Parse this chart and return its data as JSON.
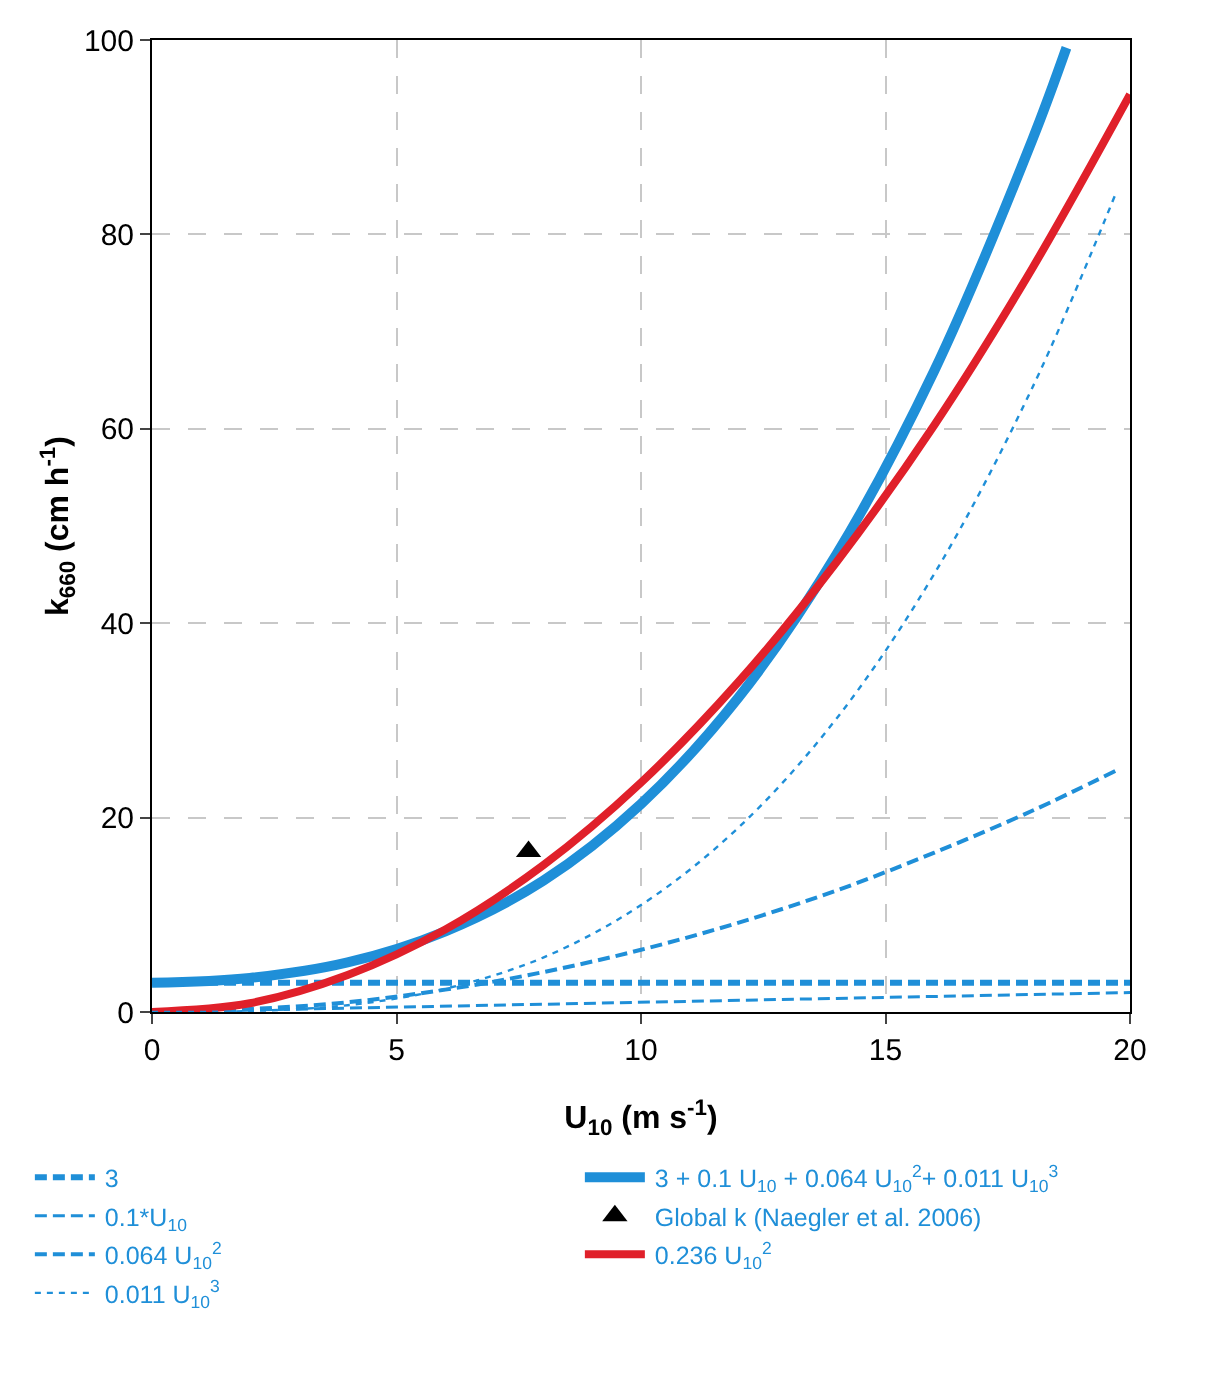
{
  "chart_data": {
    "type": "line",
    "xlabel": "U$_{10}$ (m s$^{-1}$)",
    "ylabel": "k$_{660}$ (cm h$^{-1}$)",
    "xlim": [
      0,
      20
    ],
    "xticks": [
      0,
      5,
      10,
      15,
      20
    ],
    "ylim": [
      0,
      100
    ],
    "yticks": [
      0,
      20,
      40,
      60,
      80,
      100
    ],
    "grid": true,
    "legend": "bottom",
    "series": [
      {
        "name": "3",
        "color": "#1f8fd8",
        "line_style": "dashed",
        "x": [
          0,
          20
        ],
        "values": [
          3,
          3
        ]
      },
      {
        "name": "3 + 0.1 U$_{10}$ + 0.064 U$_{10}$$^{2}$+ 0.011 U$_{10}$$^{3}$",
        "color": "#1f8fd8",
        "line_style": "solid",
        "x": [
          0,
          2,
          4,
          6,
          8,
          10,
          12,
          14,
          16,
          18,
          18.7
        ],
        "values": [
          3,
          3.5,
          5.1,
          8.3,
          13.5,
          21.4,
          32.4,
          47.1,
          66,
          89.7,
          99.2
        ]
      },
      {
        "name": "0.1*U$_{10}$",
        "color": "#1f8fd8",
        "line_style": "dashed",
        "x": [
          0,
          20
        ],
        "values": [
          0,
          2
        ]
      },
      {
        "name": "Global k (Naegler et al. 2006)",
        "type": "scatter",
        "marker": "triangle",
        "color": "#000000",
        "x": [
          7.7
        ],
        "values": [
          16.5
        ]
      },
      {
        "name": "0.064 U$_{10}$$^{2}$",
        "color": "#1f8fd8",
        "line_style": "dashed",
        "x": [
          0,
          2,
          4,
          6,
          8,
          10,
          12,
          14,
          16,
          18,
          19.7
        ],
        "values": [
          0,
          0.3,
          1,
          2.3,
          4.1,
          6.4,
          9.2,
          12.5,
          16.4,
          20.7,
          24.8
        ]
      },
      {
        "name": "0.236 U$_{10}$$^{2}$",
        "color": "#e0202a",
        "line_style": "solid",
        "x": [
          0,
          2,
          4,
          6,
          8,
          10,
          12,
          14,
          16,
          18,
          20
        ],
        "values": [
          0,
          0.9,
          3.8,
          8.5,
          15.1,
          23.6,
          34,
          46.3,
          60.4,
          76.5,
          94.4
        ]
      },
      {
        "name": "0.011 U$_{10}$$^{3}$",
        "color": "#1f8fd8",
        "line_style": "dotted",
        "x": [
          0,
          2,
          4,
          6,
          8,
          10,
          12,
          14,
          16,
          18,
          19.7
        ],
        "values": [
          0,
          0.1,
          0.7,
          2.4,
          5.6,
          11,
          19,
          30.2,
          45.1,
          64.2,
          84.1
        ]
      }
    ]
  }
}
